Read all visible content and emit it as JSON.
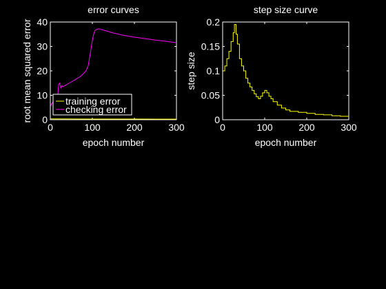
{
  "figure": {
    "background": "#000000",
    "axes_color": "#ffffff"
  },
  "chart_data": [
    {
      "type": "line",
      "title": "error curves",
      "xlabel": "epoch number",
      "ylabel": "root mean squared error",
      "xlim": [
        0,
        300
      ],
      "ylim": [
        0,
        40
      ],
      "xticks": [
        0,
        100,
        200,
        300
      ],
      "yticks": [
        0,
        10,
        20,
        30,
        40
      ],
      "grid": false,
      "legend": {
        "placement": "lower-left",
        "entries": [
          "training error",
          "checking error"
        ]
      },
      "series": [
        {
          "name": "training error",
          "color": "#ffff00",
          "x": [
            1,
            50,
            100,
            150,
            200,
            250,
            300
          ],
          "y": [
            0.35,
            0.3,
            0.28,
            0.27,
            0.27,
            0.26,
            0.26
          ]
        },
        {
          "name": "checking error",
          "color": "#ff00ff",
          "x": [
            1,
            3,
            6,
            10,
            14,
            18,
            20,
            22,
            25,
            27,
            30,
            40,
            50,
            60,
            70,
            80,
            85,
            90,
            95,
            100,
            103,
            106,
            110,
            115,
            120,
            125,
            130,
            150,
            175,
            200,
            225,
            250,
            275,
            300
          ],
          "y": [
            5.5,
            6.5,
            7.2,
            8.0,
            9.0,
            10.5,
            14.5,
            15.0,
            13.0,
            14.0,
            13.5,
            14.5,
            15.5,
            16.5,
            17.5,
            19.0,
            20.0,
            22.0,
            27.0,
            32.5,
            35.0,
            36.5,
            37.0,
            37.2,
            37.0,
            36.8,
            36.5,
            35.5,
            34.5,
            33.8,
            33.2,
            32.6,
            32.1,
            31.5
          ]
        }
      ]
    },
    {
      "type": "line",
      "title": "step size curve",
      "xlabel": "epoch number",
      "ylabel": "step size",
      "xlim": [
        0,
        300
      ],
      "ylim": [
        0,
        0.2
      ],
      "xticks": [
        0,
        100,
        200,
        300
      ],
      "yticks": [
        0,
        0.05,
        0.1,
        0.15,
        0.2
      ],
      "grid": false,
      "series": [
        {
          "color": "#ffff00",
          "step": true,
          "x": [
            1,
            5,
            10,
            15,
            20,
            25,
            28,
            30,
            32,
            35,
            40,
            45,
            50,
            55,
            60,
            65,
            70,
            75,
            80,
            85,
            90,
            95,
            100,
            105,
            110,
            115,
            120,
            130,
            140,
            150,
            160,
            180,
            200,
            220,
            240,
            260,
            280,
            300
          ],
          "y": [
            0.1,
            0.11,
            0.125,
            0.14,
            0.16,
            0.178,
            0.195,
            0.195,
            0.175,
            0.155,
            0.125,
            0.11,
            0.1,
            0.085,
            0.075,
            0.067,
            0.06,
            0.053,
            0.047,
            0.043,
            0.048,
            0.055,
            0.06,
            0.055,
            0.048,
            0.043,
            0.037,
            0.03,
            0.024,
            0.02,
            0.017,
            0.015,
            0.013,
            0.011,
            0.01,
            0.008,
            0.007,
            0.006
          ]
        }
      ]
    }
  ]
}
